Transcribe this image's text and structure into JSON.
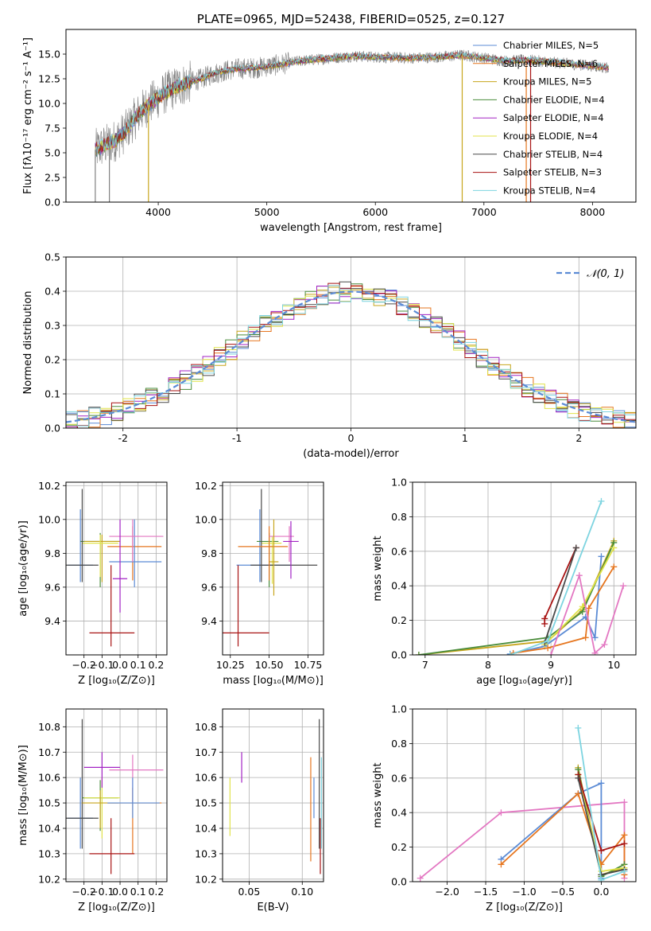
{
  "chart_data": [
    {
      "id": "spectrum",
      "type": "line",
      "title": "PLATE=0965, MJD=52438, FIBERID=0525, z=0.127",
      "xlabel": "wavelength [Angstrom, rest frame]",
      "ylabel": "Flux [fλ10⁻¹⁷ erg cm⁻² s⁻¹ A⁻¹]",
      "xlim": [
        3150,
        8400
      ],
      "ylim": [
        0,
        17.5
      ],
      "xticks": [
        4000,
        5000,
        6000,
        7000,
        8000
      ],
      "yticks": [
        0.0,
        2.5,
        5.0,
        7.5,
        10.0,
        12.5,
        15.0
      ],
      "grid": false,
      "legend_position": "top-right",
      "legend": [
        {
          "name": "Chabrier MILES, N_SSP=5",
          "color": "#5b8bd5"
        },
        {
          "name": "Salpeter MILES, N_SSP=6",
          "color": "#e6761f"
        },
        {
          "name": "Kroupa MILES, N_SSP=5",
          "color": "#c7a51c"
        },
        {
          "name": "Chabrier ELODIE, N_SSP=4",
          "color": "#4a8c3b"
        },
        {
          "name": "Salpeter ELODIE, N_SSP=4",
          "color": "#a323c4"
        },
        {
          "name": "Kroupa ELODIE, N_SSP=4",
          "color": "#e0e34a"
        },
        {
          "name": "Chabrier STELIB, N_SSP=4",
          "color": "#4a4a4a"
        },
        {
          "name": "Salpeter STELIB, N_SSP=3",
          "color": "#a81313"
        },
        {
          "name": "Kroupa STELIB, N_SSP=4",
          "color": "#7dd4e0"
        }
      ],
      "data_color": "#808080",
      "model_color": "#7dd4e0",
      "continuum": [
        [
          3420,
          5.3
        ],
        [
          3500,
          5.7
        ],
        [
          3600,
          6.2
        ],
        [
          3700,
          7.2
        ],
        [
          3800,
          8.7
        ],
        [
          3900,
          9.8
        ],
        [
          4000,
          10.6
        ],
        [
          4100,
          11.3
        ],
        [
          4200,
          11.8
        ],
        [
          4300,
          12.2
        ],
        [
          4400,
          12.5
        ],
        [
          4500,
          13.0
        ],
        [
          4700,
          13.5
        ],
        [
          4900,
          13.6
        ],
        [
          5100,
          13.9
        ],
        [
          5300,
          14.3
        ],
        [
          5500,
          14.5
        ],
        [
          5800,
          14.8
        ],
        [
          6000,
          14.7
        ],
        [
          6300,
          14.6
        ],
        [
          6600,
          14.7
        ],
        [
          6800,
          14.9
        ],
        [
          7000,
          14.6
        ],
        [
          7200,
          14.3
        ],
        [
          7400,
          14.4
        ],
        [
          7600,
          14.2
        ],
        [
          7800,
          14.0
        ],
        [
          8000,
          13.8
        ],
        [
          8150,
          13.6
        ]
      ],
      "dropouts": [
        [
          3420,
          "#808080"
        ],
        [
          3550,
          "#808080"
        ],
        [
          3910,
          "#c7a51c"
        ],
        [
          6800,
          "#c7a51c"
        ],
        [
          7390,
          "#e6761f"
        ],
        [
          7430,
          "#a81313"
        ]
      ]
    },
    {
      "id": "residuals",
      "type": "step",
      "xlabel": "(data-model)/error",
      "ylabel": "Normed distribution",
      "xlim": [
        -2.5,
        2.5
      ],
      "ylim": [
        0,
        0.5
      ],
      "xticks": [
        -2,
        -1,
        0,
        1,
        2
      ],
      "yticks": [
        0.0,
        0.1,
        0.2,
        0.3,
        0.4,
        0.5
      ],
      "grid": true,
      "legend_position": "top-right",
      "legend": [
        {
          "name": "𝒩(0, 1)",
          "color": "#5b8bd5"
        }
      ],
      "bin_width": 0.1,
      "colors": [
        "#5b8bd5",
        "#e6761f",
        "#c7a51c",
        "#4a8c3b",
        "#a323c4",
        "#e0e34a",
        "#4a4a4a",
        "#a81313",
        "#7dd4e0"
      ]
    },
    {
      "id": "age-vs-Z",
      "type": "errorbar",
      "xlabel": "Z [log₁₀(Z/Z⊙)]",
      "ylabel": "age  [log₁₀(age/yr)]",
      "xlim": [
        -0.3,
        0.26
      ],
      "ylim": [
        9.2,
        10.22
      ],
      "xticks": [
        -0.2,
        -0.1,
        0.0,
        0.1,
        0.2
      ],
      "xticklabels": [
        "−0.2",
        "−0.1",
        "0.0",
        "0.1",
        "0.2"
      ],
      "yticks": [
        9.4,
        9.6,
        9.8,
        10.0,
        10.2
      ],
      "grid": true,
      "points": [
        {
          "x": -0.22,
          "y": 9.73,
          "xerr": [
            0.07,
            0.07
          ],
          "yerr": [
            0.1,
            0.33
          ],
          "color": "#5b8bd5"
        },
        {
          "x": -0.11,
          "y": 9.87,
          "xerr": [
            0.11,
            0.11
          ],
          "yerr": [
            0.27,
            0.05
          ],
          "color": "#4a8c3b"
        },
        {
          "x": -0.1,
          "y": 9.87,
          "xerr": [
            0.1,
            0.1
          ],
          "yerr": [
            0.24,
            0.04
          ],
          "color": "#c7a51c"
        },
        {
          "x": -0.11,
          "y": 9.86,
          "xerr": [
            0.1,
            0.1
          ],
          "yerr": [
            0.2,
            0.05
          ],
          "color": "#e0e34a"
        },
        {
          "x": -0.21,
          "y": 9.73,
          "xerr": [
            0.09,
            0.09
          ],
          "yerr": [
            0.1,
            0.45
          ],
          "color": "#4a4a4a"
        },
        {
          "x": 0.07,
          "y": 9.84,
          "xerr": [
            0.14,
            0.16
          ],
          "yerr": [
            0.2,
            0.12
          ],
          "color": "#e6761f"
        },
        {
          "x": 0.08,
          "y": 9.75,
          "xerr": [
            0.14,
            0.15
          ],
          "yerr": [
            0.15,
            0.25
          ],
          "color": "#5b8bd5"
        },
        {
          "x": 0.07,
          "y": 9.9,
          "xerr": [
            0.13,
            0.17
          ],
          "yerr": [
            0.15,
            0.1
          ],
          "color": "#e377c2"
        },
        {
          "x": -0.05,
          "y": 9.33,
          "xerr": [
            0.12,
            0.13
          ],
          "yerr": [
            0.08,
            0.4
          ],
          "color": "#a81313"
        },
        {
          "x": 0.0,
          "y": 9.65,
          "xerr": [
            0.04,
            0.04
          ],
          "yerr": [
            0.2,
            0.35
          ],
          "color": "#a323c4"
        }
      ]
    },
    {
      "id": "age-vs-mass",
      "type": "errorbar",
      "xlabel": "mass [log₁₀(M/M⊙)]",
      "ylabel": "",
      "xlim": [
        10.2,
        10.85
      ],
      "ylim": [
        9.2,
        10.22
      ],
      "xticks": [
        10.25,
        10.5,
        10.75
      ],
      "xticklabels": [
        "10.25",
        "10.50",
        "10.75"
      ],
      "yticks": [
        9.4,
        9.6,
        9.8,
        10.0,
        10.2
      ],
      "grid": true,
      "points": [
        {
          "x": 10.44,
          "y": 9.73,
          "xerr": [
            0.15,
            0.2
          ],
          "yerr": [
            0.1,
            0.33
          ],
          "color": "#5b8bd5"
        },
        {
          "x": 10.5,
          "y": 9.87,
          "xerr": [
            0.08,
            0.06
          ],
          "yerr": [
            0.27,
            0.05
          ],
          "color": "#4a8c3b"
        },
        {
          "x": 10.52,
          "y": 9.86,
          "xerr": [
            0.07,
            0.06
          ],
          "yerr": [
            0.24,
            0.04
          ],
          "color": "#e0e34a"
        },
        {
          "x": 10.45,
          "y": 9.73,
          "xerr": [
            0.07,
            0.36
          ],
          "yerr": [
            0.1,
            0.45
          ],
          "color": "#4a4a4a"
        },
        {
          "x": 10.5,
          "y": 9.84,
          "xerr": [
            0.2,
            0.12
          ],
          "yerr": [
            0.2,
            0.12
          ],
          "color": "#e6761f"
        },
        {
          "x": 10.63,
          "y": 9.9,
          "xerr": [
            0.13,
            0.03
          ],
          "yerr": [
            0.15,
            0.06
          ],
          "color": "#e377c2"
        },
        {
          "x": 10.64,
          "y": 9.87,
          "xerr": [
            0.05,
            0.05
          ],
          "yerr": [
            0.22,
            0.12
          ],
          "color": "#a323c4"
        },
        {
          "x": 10.3,
          "y": 9.33,
          "xerr": [
            0.1,
            0.2
          ],
          "yerr": [
            0.08,
            0.4
          ],
          "color": "#a81313"
        },
        {
          "x": 10.53,
          "y": 9.75,
          "xerr": [
            0.03,
            0.03
          ],
          "yerr": [
            0.2,
            0.25
          ],
          "color": "#c7a51c"
        }
      ]
    },
    {
      "id": "massweight-vs-age",
      "type": "line",
      "xlabel": "age  [log₁₀(age/yr)]",
      "ylabel": "mass weight",
      "xlim": [
        6.8,
        10.35
      ],
      "ylim": [
        0,
        1.0
      ],
      "xticks": [
        7,
        8,
        9,
        10
      ],
      "yticks": [
        0.0,
        0.2,
        0.4,
        0.6,
        0.8,
        1.0
      ],
      "grid": true,
      "series": [
        {
          "color": "#5b8bd5",
          "x": [
            8.35,
            8.9,
            9.55,
            9.7,
            9.8
          ],
          "y": [
            0.005,
            0.05,
            0.22,
            0.1,
            0.57
          ]
        },
        {
          "color": "#e6761f",
          "x": [
            8.4,
            8.95,
            9.55,
            9.6,
            10.0
          ],
          "y": [
            0.01,
            0.04,
            0.1,
            0.27,
            0.51
          ]
        },
        {
          "color": "#c7a51c",
          "x": [
            6.9,
            8.95,
            9.5,
            10.0
          ],
          "y": [
            0.0,
            0.08,
            0.26,
            0.66
          ]
        },
        {
          "color": "#4a8c3b",
          "x": [
            6.9,
            8.95,
            9.5,
            10.0
          ],
          "y": [
            0.0,
            0.1,
            0.25,
            0.65
          ]
        },
        {
          "color": "#e0e34a",
          "x": [
            8.9,
            9.5,
            10.0
          ],
          "y": [
            0.06,
            0.28,
            0.62
          ]
        },
        {
          "color": "#a81313",
          "x": [
            8.9,
            8.9,
            9.4
          ],
          "y": [
            0.18,
            0.21,
            0.62
          ]
        },
        {
          "color": "#4a4a4a",
          "x": [
            8.9,
            9.4
          ],
          "y": [
            0.07,
            0.62
          ]
        },
        {
          "color": "#e377c2",
          "x": [
            9.0,
            9.45,
            9.7,
            9.85,
            10.15
          ],
          "y": [
            0.0,
            0.46,
            0.01,
            0.06,
            0.4
          ]
        },
        {
          "color": "#7dd4e0",
          "x": [
            8.35,
            8.95,
            9.8
          ],
          "y": [
            0.0,
            0.08,
            0.89
          ]
        }
      ]
    },
    {
      "id": "mass-vs-Z",
      "type": "errorbar",
      "xlabel": "Z [log₁₀(Z/Z⊙)]",
      "ylabel": "mass [log₁₀(M/M⊙)]",
      "xlim": [
        -0.3,
        0.26
      ],
      "ylim": [
        10.19,
        10.87
      ],
      "xticks": [
        -0.2,
        -0.1,
        0.0,
        0.1,
        0.2
      ],
      "xticklabels": [
        "−0.2",
        "−0.1",
        "0.0",
        "0.1",
        "0.2"
      ],
      "yticks": [
        10.2,
        10.3,
        10.4,
        10.5,
        10.6,
        10.7,
        10.8
      ],
      "grid": true,
      "points": [
        {
          "x": -0.22,
          "y": 10.44,
          "xerr": [
            0.07,
            0.07
          ],
          "yerr": [
            0.12,
            0.16
          ],
          "color": "#5b8bd5"
        },
        {
          "x": -0.21,
          "y": 10.44,
          "xerr": [
            0.09,
            0.09
          ],
          "yerr": [
            0.12,
            0.39
          ],
          "color": "#4a4a4a"
        },
        {
          "x": -0.11,
          "y": 10.52,
          "xerr": [
            0.1,
            0.1
          ],
          "yerr": [
            0.13,
            0.07
          ],
          "color": "#4a8c3b"
        },
        {
          "x": -0.1,
          "y": 10.52,
          "xerr": [
            0.1,
            0.1
          ],
          "yerr": [
            0.16,
            0.08
          ],
          "color": "#e0e34a"
        },
        {
          "x": -0.11,
          "y": 10.5,
          "xerr": [
            0.1,
            0.1
          ],
          "yerr": [
            0.1,
            0.05
          ],
          "color": "#c7a51c"
        },
        {
          "x": -0.1,
          "y": 10.64,
          "xerr": [
            0.1,
            0.1
          ],
          "yerr": [
            0.08,
            0.06
          ],
          "color": "#a323c4"
        },
        {
          "x": 0.07,
          "y": 10.63,
          "xerr": [
            0.13,
            0.17
          ],
          "yerr": [
            0.13,
            0.06
          ],
          "color": "#e377c2"
        },
        {
          "x": 0.07,
          "y": 10.5,
          "xerr": [
            0.14,
            0.16
          ],
          "yerr": [
            0.2,
            0.06
          ],
          "color": "#e6761f"
        },
        {
          "x": 0.07,
          "y": 10.5,
          "xerr": [
            0.14,
            0.15
          ],
          "yerr": [
            0.06,
            0.1
          ],
          "color": "#5b8bd5"
        },
        {
          "x": -0.05,
          "y": 10.3,
          "xerr": [
            0.12,
            0.13
          ],
          "yerr": [
            0.08,
            0.14
          ],
          "color": "#a81313"
        }
      ]
    },
    {
      "id": "mass-vs-ebv",
      "type": "errorbar",
      "xlabel": "E(B-V)",
      "ylabel": "",
      "xlim": [
        0.025,
        0.12
      ],
      "ylim": [
        10.19,
        10.87
      ],
      "xticks": [
        0.05,
        0.1
      ],
      "xticklabels": [
        "0.05",
        "0.10"
      ],
      "yticks": [
        10.2,
        10.3,
        10.4,
        10.5,
        10.6,
        10.7,
        10.8
      ],
      "grid": true,
      "points": [
        {
          "x": 0.032,
          "y": 10.5,
          "xerr": [
            0,
            0
          ],
          "yerr": [
            0.13,
            0.1
          ],
          "color": "#e0e34a"
        },
        {
          "x": 0.043,
          "y": 10.64,
          "xerr": [
            0,
            0
          ],
          "yerr": [
            0.06,
            0.06
          ],
          "color": "#a323c4"
        },
        {
          "x": 0.108,
          "y": 10.5,
          "xerr": [
            0,
            0
          ],
          "yerr": [
            0.23,
            0.18
          ],
          "color": "#e6761f"
        },
        {
          "x": 0.111,
          "y": 10.5,
          "xerr": [
            0,
            0
          ],
          "yerr": [
            0.06,
            0.1
          ],
          "color": "#5b8bd5"
        },
        {
          "x": 0.116,
          "y": 10.44,
          "xerr": [
            0,
            0
          ],
          "yerr": [
            0.12,
            0.39
          ],
          "color": "#4a4a4a"
        },
        {
          "x": 0.117,
          "y": 10.3,
          "xerr": [
            0,
            0
          ],
          "yerr": [
            0.08,
            0.14
          ],
          "color": "#a81313"
        },
        {
          "x": 0.118,
          "y": 10.6,
          "xerr": [
            0,
            0
          ],
          "yerr": [
            0.28,
            0.08
          ],
          "color": "#7dd4e0"
        }
      ]
    },
    {
      "id": "massweight-vs-Z",
      "type": "line",
      "xlabel": "Z [log₁₀(Z/Z⊙)]",
      "ylabel": "mass weight",
      "xlim": [
        -2.45,
        0.45
      ],
      "ylim": [
        0,
        1.0
      ],
      "xticks": [
        -2.0,
        -1.5,
        -1.0,
        -0.5,
        0.0
      ],
      "xticklabels": [
        "−2.0",
        "−1.5",
        "−1.0",
        "−0.5",
        "0.0"
      ],
      "yticks": [
        0.0,
        0.2,
        0.4,
        0.6,
        0.8,
        1.0
      ],
      "grid": true,
      "series": [
        {
          "color": "#e377c2",
          "x": [
            -2.35,
            -1.3,
            0.3,
            0.3
          ],
          "y": [
            0.02,
            0.4,
            0.46,
            0.02
          ]
        },
        {
          "color": "#5b8bd5",
          "x": [
            -1.3,
            -0.3,
            0.0,
            0.0
          ],
          "y": [
            0.13,
            0.51,
            0.57,
            0.02
          ]
        },
        {
          "color": "#e6761f",
          "x": [
            -1.3,
            -0.3,
            0.0,
            0.3,
            0.3
          ],
          "y": [
            0.1,
            0.51,
            0.1,
            0.27,
            0.04
          ]
        },
        {
          "color": "#c7a51c",
          "x": [
            -0.3,
            0.0,
            0.3
          ],
          "y": [
            0.66,
            0.04,
            0.08
          ]
        },
        {
          "color": "#4a8c3b",
          "x": [
            -0.3,
            0.0,
            0.3
          ],
          "y": [
            0.65,
            0.03,
            0.1
          ]
        },
        {
          "color": "#e0e34a",
          "x": [
            -0.3,
            0.0,
            0.3
          ],
          "y": [
            0.62,
            0.06,
            0.08
          ]
        },
        {
          "color": "#a81313",
          "x": [
            -0.3,
            0.0,
            0.3
          ],
          "y": [
            0.62,
            0.18,
            0.22
          ]
        },
        {
          "color": "#4a4a4a",
          "x": [
            -0.3,
            0.0,
            0.3
          ],
          "y": [
            0.6,
            0.04,
            0.07
          ]
        },
        {
          "color": "#7dd4e0",
          "x": [
            -0.3,
            0.0,
            0.3
          ],
          "y": [
            0.89,
            0.01,
            0.06
          ]
        }
      ]
    }
  ]
}
